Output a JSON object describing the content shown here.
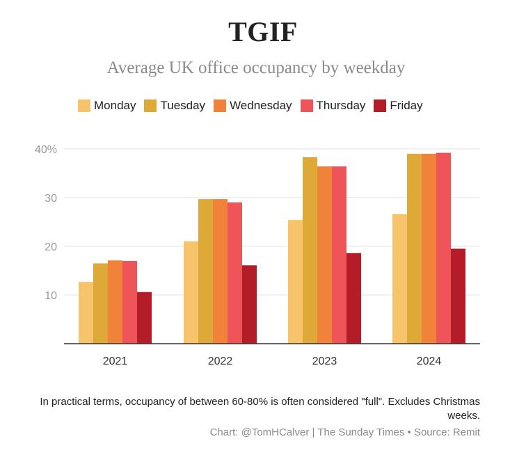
{
  "title": "TGIF",
  "subtitle": "Average UK office occupancy by weekday",
  "note": "In practical terms, occupancy of between 60-80% is often considered \"full\". Excludes Christmas weeks.",
  "source": "Chart: @TomHCalver | The Sunday Times • Source: Remit",
  "colors": {
    "Monday": "#f7c46c",
    "Tuesday": "#dfa937",
    "Wednesday": "#f1823a",
    "Thursday": "#ef5458",
    "Friday": "#b41c27",
    "grid": "#e3e3e3",
    "axis": "#333333"
  },
  "chart_data": {
    "type": "bar",
    "title": "TGIF",
    "subtitle": "Average UK office occupancy by weekday",
    "xlabel": "",
    "ylabel": "",
    "categories": [
      "2021",
      "2022",
      "2023",
      "2024"
    ],
    "series": [
      {
        "name": "Monday",
        "values": [
          12.7,
          21.0,
          25.4,
          26.6
        ]
      },
      {
        "name": "Tuesday",
        "values": [
          16.5,
          29.7,
          38.3,
          39.0
        ]
      },
      {
        "name": "Wednesday",
        "values": [
          17.1,
          29.7,
          36.4,
          39.0
        ]
      },
      {
        "name": "Thursday",
        "values": [
          17.0,
          29.0,
          36.4,
          39.2
        ]
      },
      {
        "name": "Friday",
        "values": [
          10.6,
          16.1,
          18.6,
          19.5
        ]
      }
    ],
    "yticks": [
      10,
      20,
      30,
      40
    ],
    "ytick_labels": [
      "10",
      "20",
      "30",
      "40%"
    ],
    "ylim": [
      0,
      40
    ],
    "grid": true,
    "legend_position": "top"
  }
}
